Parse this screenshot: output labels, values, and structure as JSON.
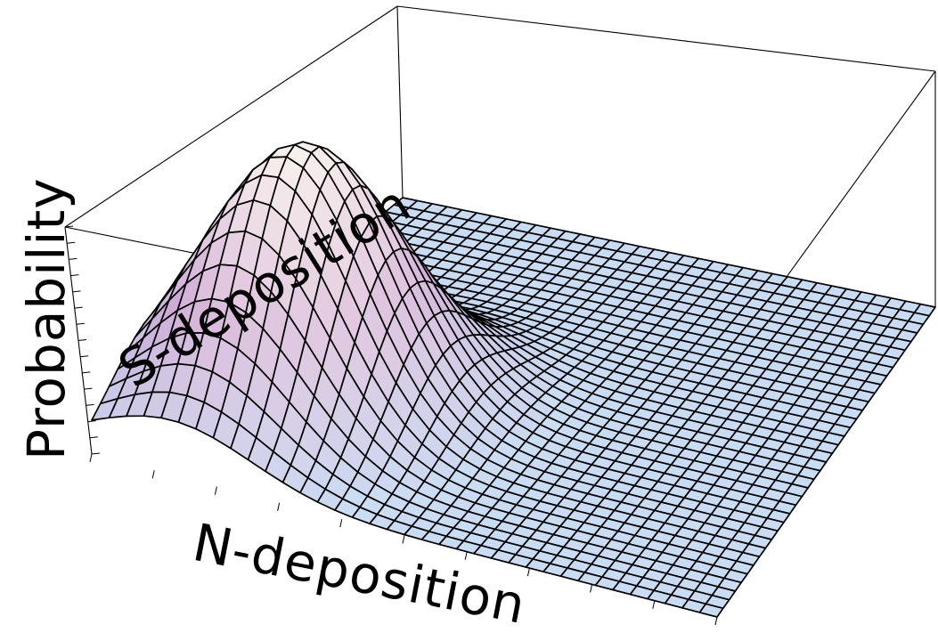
{
  "chart_data": {
    "type": "surface",
    "title": "",
    "xlabel": "N-deposition",
    "ylabel": "S-deposition",
    "zlabel": "Probability",
    "grid_resolution": 36,
    "surface": {
      "shape": "single-peak",
      "peak_x": 0.2,
      "peak_y": 0.28,
      "spread_x": 0.13,
      "spread_y": 0.15,
      "peak_value": 1.0,
      "baseline": 0.0
    },
    "colors": {
      "flat": "#c8dcf3",
      "low_shade": "#9cb6e3",
      "peak": "#f8f1ec",
      "mid": "#cfa7d6",
      "mesh": "#000000"
    }
  }
}
